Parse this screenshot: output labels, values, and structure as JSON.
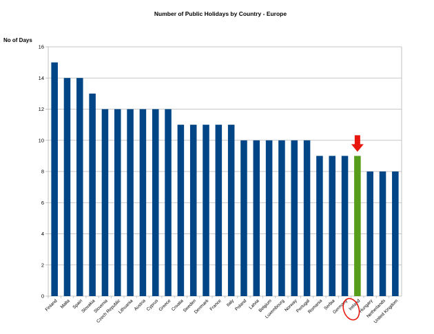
{
  "chart_data": {
    "type": "bar",
    "title": "Number of Public Holidays by Country - Europe",
    "xlabel": "",
    "ylabel": "No of Days",
    "ylim": [
      0,
      16
    ],
    "yticks": [
      0,
      2,
      4,
      6,
      8,
      10,
      12,
      14,
      16
    ],
    "grid": true,
    "legend": "none",
    "categories": [
      "Finland",
      "Malta",
      "Spain",
      "Slovakia",
      "Slovenia",
      "Czech Republic",
      "Lithuania",
      "Austria",
      "Cyprus",
      "Greece",
      "Croatia",
      "Sweden",
      "Denmark",
      "France",
      "Italy",
      "Poland",
      "Latvia",
      "Belgium",
      "Luxembourg",
      "Norway",
      "Portugal",
      "Romania",
      "Serbia",
      "Germany",
      "Ireland",
      "Hungary",
      "Netherlands",
      "United Kingdom"
    ],
    "values": [
      15,
      14,
      14,
      13,
      12,
      12,
      12,
      12,
      12,
      12,
      11,
      11,
      11,
      11,
      11,
      10,
      10,
      10,
      10,
      10,
      10,
      9,
      9,
      9,
      9,
      8,
      8,
      8
    ],
    "colors": {
      "bar": "#004586",
      "highlight": "#579d1c",
      "annotation": "#e8170e",
      "grid": "#b3b3b3"
    },
    "highlight_category": "Ireland",
    "annotations": [
      "arrow-above-ireland",
      "circle-around-ireland-label"
    ]
  }
}
